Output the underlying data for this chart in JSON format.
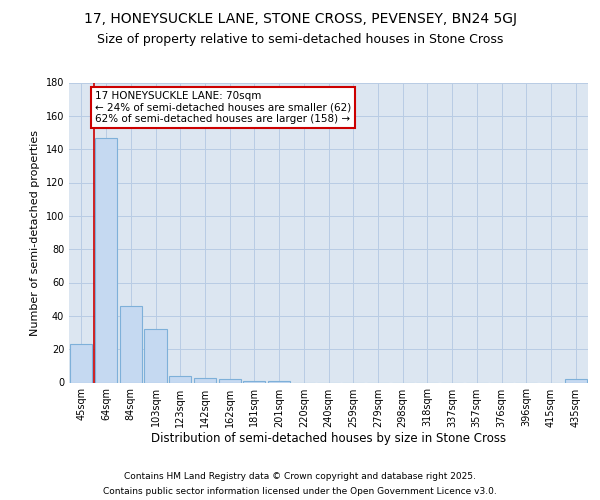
{
  "title1": "17, HONEYSUCKLE LANE, STONE CROSS, PEVENSEY, BN24 5GJ",
  "title2": "Size of property relative to semi-detached houses in Stone Cross",
  "xlabel": "Distribution of semi-detached houses by size in Stone Cross",
  "ylabel": "Number of semi-detached properties",
  "categories": [
    "45sqm",
    "64sqm",
    "84sqm",
    "103sqm",
    "123sqm",
    "142sqm",
    "162sqm",
    "181sqm",
    "201sqm",
    "220sqm",
    "240sqm",
    "259sqm",
    "279sqm",
    "298sqm",
    "318sqm",
    "337sqm",
    "357sqm",
    "376sqm",
    "396sqm",
    "415sqm",
    "435sqm"
  ],
  "values": [
    23,
    147,
    46,
    32,
    4,
    3,
    2,
    1,
    1,
    0,
    0,
    0,
    0,
    0,
    0,
    0,
    0,
    0,
    0,
    0,
    2
  ],
  "bar_color": "#c5d9f1",
  "bar_edge_color": "#7eb0d9",
  "bar_edge_width": 0.8,
  "grid_color": "#b8cce4",
  "bg_color": "#dce6f1",
  "ylim": [
    0,
    180
  ],
  "yticks": [
    0,
    20,
    40,
    60,
    80,
    100,
    120,
    140,
    160,
    180
  ],
  "red_line_x": 1.0,
  "annotation_text": "17 HONEYSUCKLE LANE: 70sqm\n← 24% of semi-detached houses are smaller (62)\n62% of semi-detached houses are larger (158) →",
  "annotation_box_color": "white",
  "red_line_color": "#cc0000",
  "footer1": "Contains HM Land Registry data © Crown copyright and database right 2025.",
  "footer2": "Contains public sector information licensed under the Open Government Licence v3.0.",
  "title1_fontsize": 10,
  "title2_fontsize": 9,
  "xlabel_fontsize": 8.5,
  "ylabel_fontsize": 8,
  "tick_fontsize": 7,
  "annotation_fontsize": 7.5,
  "footer_fontsize": 6.5
}
